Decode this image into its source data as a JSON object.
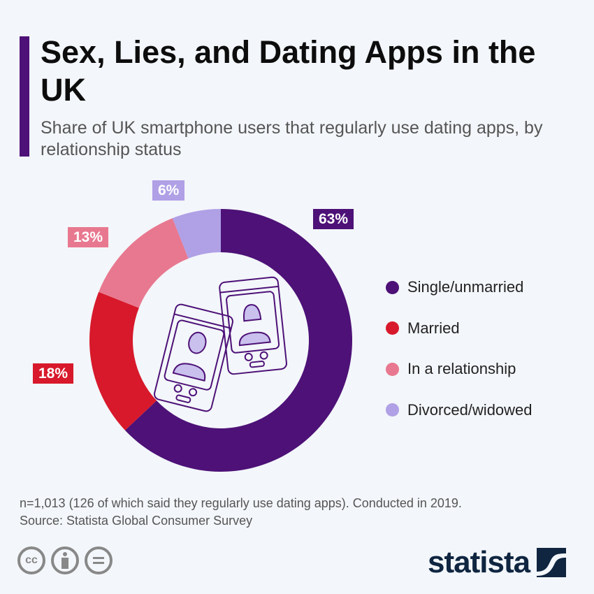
{
  "header": {
    "title": "Sex, Lies, and Dating Apps in the UK",
    "subtitle": "Share of UK smartphone users that regularly use dating apps, by relationship status"
  },
  "chart_data": {
    "type": "pie",
    "donut": true,
    "categories": [
      "Single/unmarried",
      "Married",
      "In a relationship",
      "Divorced/widowed"
    ],
    "values": [
      63,
      18,
      13,
      6
    ],
    "data_labels": [
      "63%",
      "18%",
      "13%",
      "6%"
    ],
    "colors": [
      "#4d1177",
      "#d7192b",
      "#e8788f",
      "#b0a0e6"
    ],
    "legend_position": "right"
  },
  "footer": {
    "note": "n=1,013 (126 of which said they regularly use dating apps). Conducted in 2019.",
    "source": "Source: Statista Global Consumer Survey",
    "license_icons": [
      "cc-icon",
      "by-icon",
      "nd-icon"
    ],
    "logo": "statista"
  }
}
